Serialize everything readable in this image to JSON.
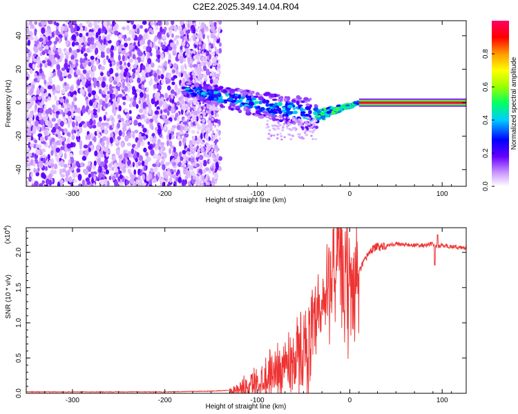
{
  "chart_data": [
    {
      "type": "heatmap",
      "title": "C2E2.2025.349.14.04.R04",
      "xlabel": "Height of straight line (km)",
      "ylabel": "Frequency (Hz)",
      "xlim": [
        -350,
        126
      ],
      "ylim": [
        -50,
        49
      ],
      "xticks": [
        -300,
        -200,
        -100,
        0,
        100
      ],
      "xtick_labels": [
        "-300",
        "-200",
        "-100",
        "0",
        "100"
      ],
      "yticks": [
        -40,
        -20,
        0,
        20,
        40
      ],
      "ytick_labels": [
        "-40",
        "-20",
        "0",
        "20",
        "40"
      ],
      "colorbar": {
        "label": "Normalized spectral amplitude",
        "range": [
          0,
          1
        ],
        "ticks": [
          0.0,
          0.2,
          0.4,
          0.6,
          0.8
        ],
        "tick_labels": [
          "0.0",
          "0.2",
          "0.4",
          "0.6",
          "0.8"
        ],
        "colors": [
          "#ffffff",
          "#cc99ff",
          "#6600ff",
          "#0000ff",
          "#00ccff",
          "#00ff66",
          "#99ff00",
          "#ffff00",
          "#ff9900",
          "#ff0000",
          "#ff0066"
        ]
      },
      "regions": [
        {
          "name": "broadband noise",
          "x_range": [
            -350,
            -140
          ],
          "freq_range": [
            -50,
            49
          ],
          "amplitude": 0.15
        },
        {
          "name": "converging signal",
          "x_range": [
            -180,
            -35
          ],
          "center_freq_start": 8,
          "center_freq_end": -8,
          "amplitude": 0.35
        },
        {
          "name": "signal transition",
          "x_range": [
            -35,
            10
          ],
          "center_freq_start": -8,
          "center_freq_end": 0,
          "amplitude": 0.5
        },
        {
          "name": "narrowband signal",
          "x_range": [
            10,
            126
          ],
          "center_freq": 0,
          "amplitude": 0.95
        }
      ]
    },
    {
      "type": "line",
      "xlabel": "Height of straight line (km)",
      "ylabel": "SNR (10 * v/v)",
      "y_multiplier": "(x10",
      "y_multiplier_exp": "4",
      "y_multiplier_close": ")",
      "xlim": [
        -350,
        126
      ],
      "ylim": [
        0,
        2.35
      ],
      "xticks": [
        -300,
        -200,
        -100,
        0,
        100
      ],
      "xtick_labels": [
        "-300",
        "-200",
        "-100",
        "0",
        "100"
      ],
      "yticks": [
        0.0,
        0.5,
        1.0,
        1.5,
        2.0
      ],
      "ytick_labels": [
        "0.0",
        "0.5",
        "1.0",
        "1.5",
        "2.0"
      ],
      "series": [
        {
          "name": "SNR",
          "color": "#ee3333",
          "x": [
            -350,
            -300,
            -250,
            -200,
            -150,
            -120,
            -105,
            -95,
            -85,
            -75,
            -65,
            -55,
            -45,
            -38,
            -32,
            -27,
            -22,
            -18,
            -15,
            -12,
            -8,
            -4,
            0,
            5,
            10,
            15,
            20,
            25,
            30,
            40,
            50,
            60,
            70,
            80,
            90,
            95,
            100,
            110,
            120,
            126
          ],
          "y": [
            0.02,
            0.02,
            0.02,
            0.02,
            0.03,
            0.05,
            0.12,
            0.2,
            0.28,
            0.36,
            0.45,
            0.55,
            0.7,
            0.85,
            1.05,
            1.3,
            1.55,
            1.72,
            1.82,
            1.9,
            1.6,
            1.45,
            1.5,
            1.6,
            1.72,
            1.85,
            1.98,
            2.05,
            2.08,
            2.1,
            2.12,
            2.11,
            2.1,
            2.1,
            2.12,
            2.08,
            2.1,
            2.08,
            2.07,
            2.06
          ],
          "peaks": [
            {
              "x": -18,
              "y": 2.33
            },
            {
              "x": 95,
              "y": 2.25
            },
            {
              "x": 92,
              "y": 1.82
            }
          ]
        }
      ]
    }
  ]
}
